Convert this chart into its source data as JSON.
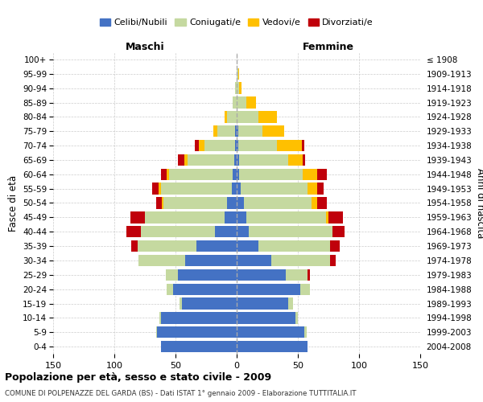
{
  "age_groups": [
    "0-4",
    "5-9",
    "10-14",
    "15-19",
    "20-24",
    "25-29",
    "30-34",
    "35-39",
    "40-44",
    "45-49",
    "50-54",
    "55-59",
    "60-64",
    "65-69",
    "70-74",
    "75-79",
    "80-84",
    "85-89",
    "90-94",
    "95-99",
    "100+"
  ],
  "birth_years": [
    "2004-2008",
    "1999-2003",
    "1994-1998",
    "1989-1993",
    "1984-1988",
    "1979-1983",
    "1974-1978",
    "1969-1973",
    "1964-1968",
    "1959-1963",
    "1954-1958",
    "1949-1953",
    "1944-1948",
    "1939-1943",
    "1934-1938",
    "1929-1933",
    "1924-1928",
    "1919-1923",
    "1914-1918",
    "1909-1913",
    "≤ 1908"
  ],
  "colors": {
    "celibe": "#4472c4",
    "coniugato": "#c5d9a0",
    "vedovo": "#ffc000",
    "divorziato": "#c0000b"
  },
  "maschi": {
    "celibe": [
      62,
      65,
      62,
      45,
      52,
      48,
      42,
      33,
      18,
      10,
      8,
      4,
      3,
      2,
      1,
      1,
      0,
      0,
      0,
      0,
      0
    ],
    "coniugato": [
      0,
      1,
      1,
      2,
      5,
      10,
      38,
      48,
      60,
      65,
      52,
      58,
      52,
      38,
      25,
      15,
      8,
      3,
      1,
      0,
      0
    ],
    "vedovo": [
      0,
      0,
      0,
      0,
      0,
      0,
      0,
      0,
      0,
      0,
      1,
      2,
      2,
      3,
      5,
      3,
      2,
      0,
      0,
      0,
      0
    ],
    "divorziato": [
      0,
      0,
      0,
      0,
      0,
      0,
      0,
      5,
      12,
      12,
      5,
      5,
      5,
      5,
      3,
      0,
      0,
      0,
      0,
      0,
      0
    ]
  },
  "femmine": {
    "nubile": [
      58,
      55,
      48,
      42,
      52,
      40,
      28,
      18,
      10,
      8,
      6,
      3,
      2,
      2,
      1,
      1,
      0,
      0,
      0,
      0,
      0
    ],
    "coniugata": [
      0,
      2,
      2,
      4,
      8,
      18,
      48,
      58,
      68,
      65,
      55,
      55,
      52,
      40,
      32,
      20,
      18,
      8,
      2,
      1,
      0
    ],
    "vedova": [
      0,
      0,
      0,
      0,
      0,
      0,
      0,
      0,
      0,
      2,
      5,
      8,
      12,
      12,
      20,
      18,
      15,
      8,
      2,
      1,
      0
    ],
    "divorziata": [
      0,
      0,
      0,
      0,
      0,
      2,
      5,
      8,
      10,
      12,
      8,
      5,
      8,
      2,
      2,
      0,
      0,
      0,
      0,
      0,
      0
    ]
  },
  "xlim": 150,
  "title1": "Popolazione per età, sesso e stato civile - 2009",
  "title2": "COMUNE DI POLPENAZZE DEL GARDA (BS) - Dati ISTAT 1° gennaio 2009 - Elaborazione TUTTITALIA.IT",
  "legend_labels": [
    "Celibi/Nubili",
    "Coniugati/e",
    "Vedovi/e",
    "Divorziati/e"
  ],
  "legend_colors": [
    "#4472c4",
    "#c5d9a0",
    "#ffc000",
    "#c0000b"
  ],
  "ylabel_left": "Fasce di età",
  "ylabel_right": "Anni di nascita",
  "xlabel_maschi": "Maschi",
  "xlabel_femmine": "Femmine",
  "bg_color": "#ffffff",
  "grid_color": "#cccccc"
}
